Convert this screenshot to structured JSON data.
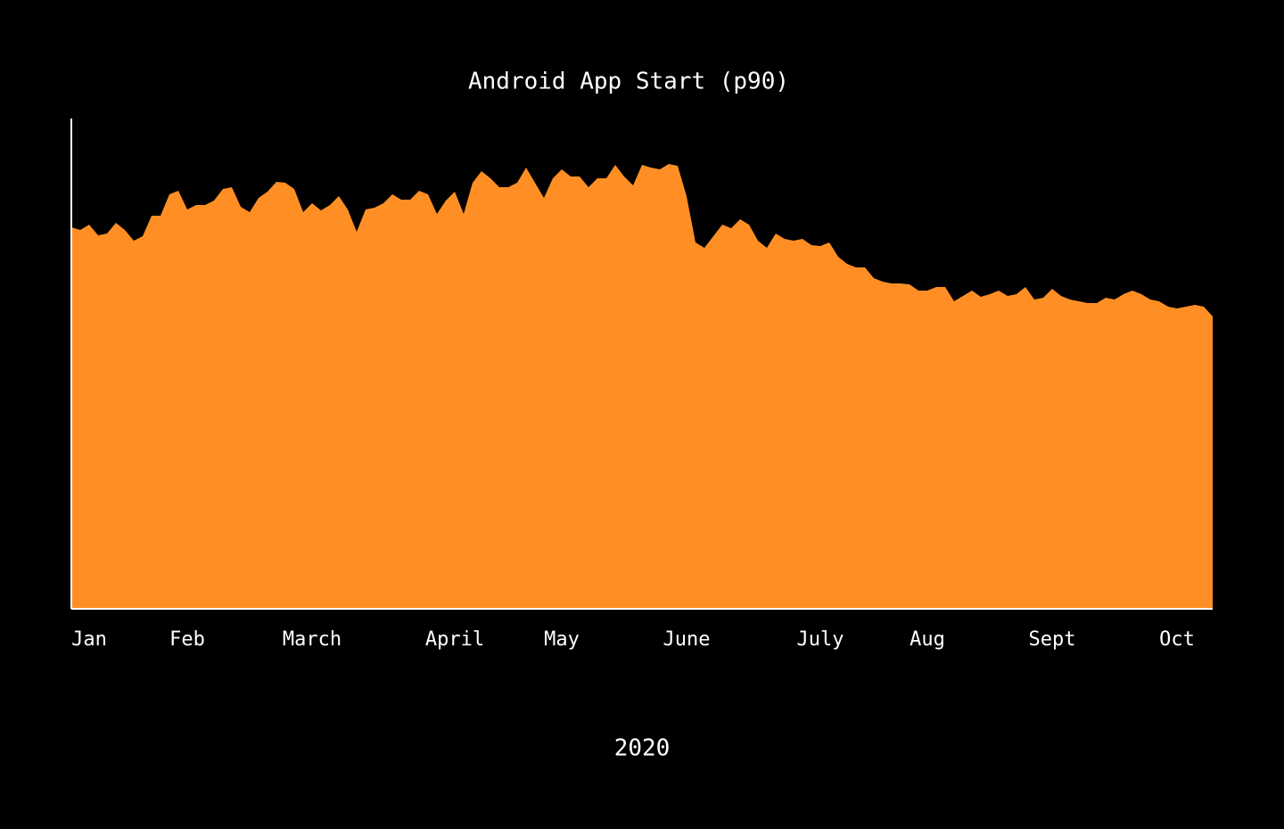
{
  "chart_data": {
    "type": "area",
    "title": "Android App Start (p90)",
    "x_label": "2020",
    "color": "#ff8f24",
    "values": [
      428,
      425,
      431,
      419,
      421,
      433,
      425,
      413,
      418,
      441,
      441,
      465,
      469,
      448,
      453,
      453,
      458,
      471,
      473,
      451,
      445,
      461,
      468,
      479,
      478,
      471,
      445,
      455,
      447,
      453,
      463,
      448,
      423,
      448,
      450,
      455,
      465,
      459,
      459,
      469,
      465,
      443,
      458,
      468,
      443,
      478,
      491,
      483,
      473,
      473,
      478,
      495,
      478,
      461,
      483,
      493,
      485,
      485,
      473,
      483,
      483,
      498,
      485,
      475,
      498,
      495,
      493,
      499,
      497,
      463,
      411,
      405,
      418,
      431,
      427,
      437,
      431,
      413,
      405,
      421,
      415,
      413,
      415,
      408,
      407,
      411,
      395,
      387,
      383,
      383,
      371,
      367,
      365,
      365,
      364,
      357,
      357,
      361,
      361,
      345,
      351,
      357,
      350,
      353,
      357,
      351,
      353,
      361,
      347,
      349,
      359,
      351,
      347,
      345,
      343,
      343,
      349,
      347,
      353,
      357,
      353,
      347,
      345,
      339,
      337,
      339,
      341,
      339,
      328
    ],
    "xlim": [
      0,
      128
    ],
    "ylim": [
      0,
      550
    ],
    "xticks": [
      {
        "value": 2,
        "label": "Jan"
      },
      {
        "value": 13,
        "label": "Feb"
      },
      {
        "value": 27,
        "label": "March"
      },
      {
        "value": 43,
        "label": "April"
      },
      {
        "value": 55,
        "label": "May"
      },
      {
        "value": 69,
        "label": "June"
      },
      {
        "value": 84,
        "label": "July"
      },
      {
        "value": 96,
        "label": "Aug"
      },
      {
        "value": 110,
        "label": "Sept"
      },
      {
        "value": 124,
        "label": "Oct"
      }
    ]
  }
}
